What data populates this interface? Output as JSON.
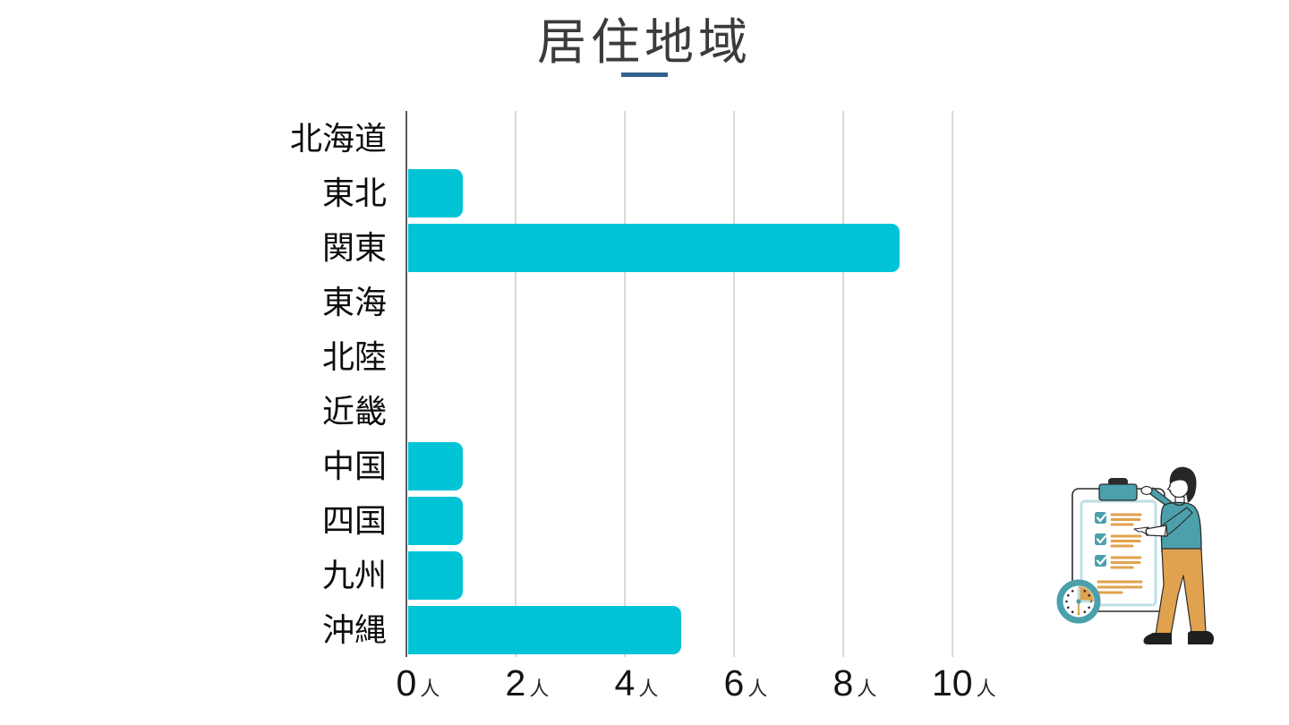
{
  "header": {
    "underline_color": "#33618f"
  },
  "chart_data": {
    "type": "bar",
    "orientation": "horizontal",
    "title": "居住地域",
    "categories": [
      "北海道",
      "東北",
      "関東",
      "東海",
      "北陸",
      "近畿",
      "中国",
      "四国",
      "九州",
      "沖縄"
    ],
    "values": [
      0,
      1,
      9,
      0,
      0,
      0,
      1,
      1,
      1,
      5
    ],
    "unit": "人",
    "xlim": [
      0,
      10
    ],
    "xticks": [
      0,
      2,
      4,
      6,
      8,
      10
    ],
    "xtick_labels": [
      "0人",
      "2人",
      "4人",
      "6人",
      "8人",
      "10人"
    ],
    "grid": true,
    "legend": "none",
    "bar_color": "#00c4d6",
    "gridline_color": "#d9d9d9",
    "axis_line_color": "#595959",
    "label_color": "#0d0d0d",
    "title_color": "#3b3b3b"
  },
  "illustration": {
    "name": "person-with-checklist-and-clock",
    "teal": "#4ba0ac",
    "light_teal": "#bfdfe6",
    "orange": "#e0a24e",
    "outline": "#2b2b2b",
    "shoe": "#1f1f1f"
  }
}
